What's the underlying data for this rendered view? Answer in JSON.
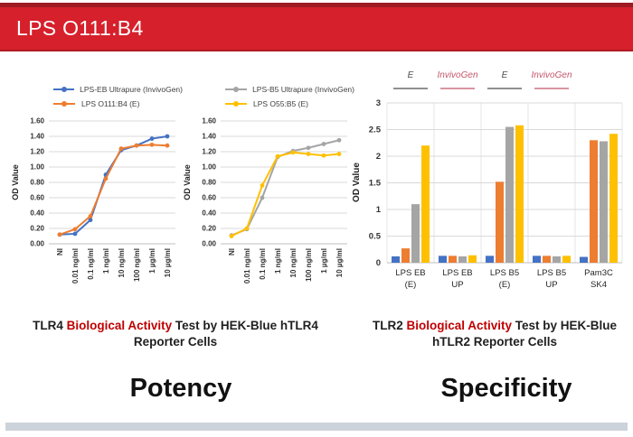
{
  "header": {
    "title": "LPS O111:B4"
  },
  "colors": {
    "banner": "#d6202b",
    "banner_dark": "#9e1b23",
    "caption_highlight": "#c00000",
    "series_blue": "#4472C4",
    "series_orange": "#ED7D31",
    "series_gray": "#A5A5A5",
    "series_yellow": "#FFC000",
    "grid": "#d9d9d9",
    "axis": "#bfbfbf",
    "annotation_e": "#4d4d4d",
    "annotation_invivogen": "#c4566b",
    "bottom_strip": "#cdd3db"
  },
  "chart_data": [
    {
      "type": "line",
      "title": "",
      "ylabel": "OD Value",
      "ylim": [
        0,
        1.6
      ],
      "ytick_step": 0.2,
      "ytick_format": "fixed2",
      "grid": true,
      "legend_position": "top",
      "categories": [
        "NI",
        "0.01 ng/ml",
        "0.1 ng/ml",
        "1 ng/ml",
        "10 ng/ml",
        "100 ng/ml",
        "1 µg/ml",
        "10 µg/ml"
      ],
      "series": [
        {
          "name": "LPS-EB Ultrapure (InvivoGen)",
          "color": "#4472C4",
          "values": [
            0.12,
            0.13,
            0.31,
            0.9,
            1.22,
            1.28,
            1.37,
            1.4
          ]
        },
        {
          "name": "LPS O111:B4 (E)",
          "color": "#ED7D31",
          "values": [
            0.12,
            0.19,
            0.36,
            0.85,
            1.24,
            1.28,
            1.29,
            1.28
          ]
        }
      ]
    },
    {
      "type": "line",
      "title": "",
      "ylabel": "OD Value",
      "ylim": [
        0,
        1.6
      ],
      "ytick_step": 0.2,
      "ytick_format": "fixed2",
      "grid": true,
      "legend_position": "top",
      "categories": [
        "NI",
        "0.01 ng/ml",
        "0.1 ng/ml",
        "1 ng/ml",
        "10 ng/ml",
        "100 ng/ml",
        "1 µg/ml",
        "10 µg/ml"
      ],
      "series": [
        {
          "name": "LPS-B5 Ultrapure (InvivoGen)",
          "color": "#A5A5A5",
          "values": [
            0.11,
            0.19,
            0.6,
            1.13,
            1.21,
            1.25,
            1.3,
            1.35
          ]
        },
        {
          "name": "LPS O55:B5 (E)",
          "color": "#FFC000",
          "values": [
            0.1,
            0.2,
            0.76,
            1.14,
            1.19,
            1.17,
            1.15,
            1.17
          ]
        }
      ]
    },
    {
      "type": "bar",
      "title": "",
      "ylabel": "OD Value",
      "ylim": [
        0,
        3
      ],
      "ytick_step": 0.5,
      "ytick_format": "auto",
      "grid": true,
      "legend_position": "none",
      "categories": [
        [
          "LPS EB",
          "(E)"
        ],
        [
          "LPS EB",
          "UP"
        ],
        [
          "LPS B5",
          "(E)"
        ],
        [
          "LPS B5",
          "UP"
        ],
        [
          "Pam3C",
          "SK4"
        ]
      ],
      "series": [
        {
          "name": "series-blue",
          "color": "#4472C4",
          "values": [
            0.12,
            0.13,
            0.13,
            0.13,
            0.11
          ]
        },
        {
          "name": "series-orange",
          "color": "#ED7D31",
          "values": [
            0.27,
            0.13,
            1.52,
            0.13,
            2.3
          ]
        },
        {
          "name": "series-gray",
          "color": "#A5A5A5",
          "values": [
            1.1,
            0.12,
            2.55,
            0.12,
            2.28
          ]
        },
        {
          "name": "series-yellow",
          "color": "#FFC000",
          "values": [
            2.2,
            0.14,
            2.58,
            0.13,
            2.42
          ]
        }
      ],
      "annotations": [
        {
          "label": "E",
          "group": 0,
          "color": "#4d4d4d"
        },
        {
          "label": "InvivoGen",
          "group": 1,
          "color": "#c4566b"
        },
        {
          "label": "E",
          "group": 2,
          "color": "#4d4d4d"
        },
        {
          "label": "InvivoGen",
          "group": 3,
          "color": "#c4566b"
        }
      ]
    }
  ],
  "captions": {
    "left": {
      "pre": "TLR4 ",
      "highlight": "Biological Activity",
      "post": " Test by HEK-Blue hTLR4 Reporter Cells"
    },
    "right": {
      "pre": "TLR2 ",
      "highlight": "Biological Activity",
      "post": " Test by HEK-Blue hTLR2 Reporter Cells"
    }
  },
  "section_labels": {
    "left": "Potency",
    "right": "Specificity"
  }
}
